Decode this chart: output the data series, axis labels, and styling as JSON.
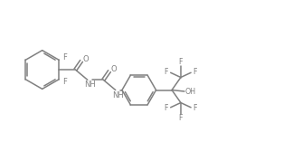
{
  "bg_color": "#ffffff",
  "bc": "#808080",
  "tc": "#808080",
  "lw": 1.1,
  "fs": 6.0,
  "figsize": [
    3.13,
    1.57
  ],
  "dpi": 100,
  "xlim": [
    -0.3,
    10.2
  ],
  "ylim": [
    0.5,
    5.5
  ]
}
